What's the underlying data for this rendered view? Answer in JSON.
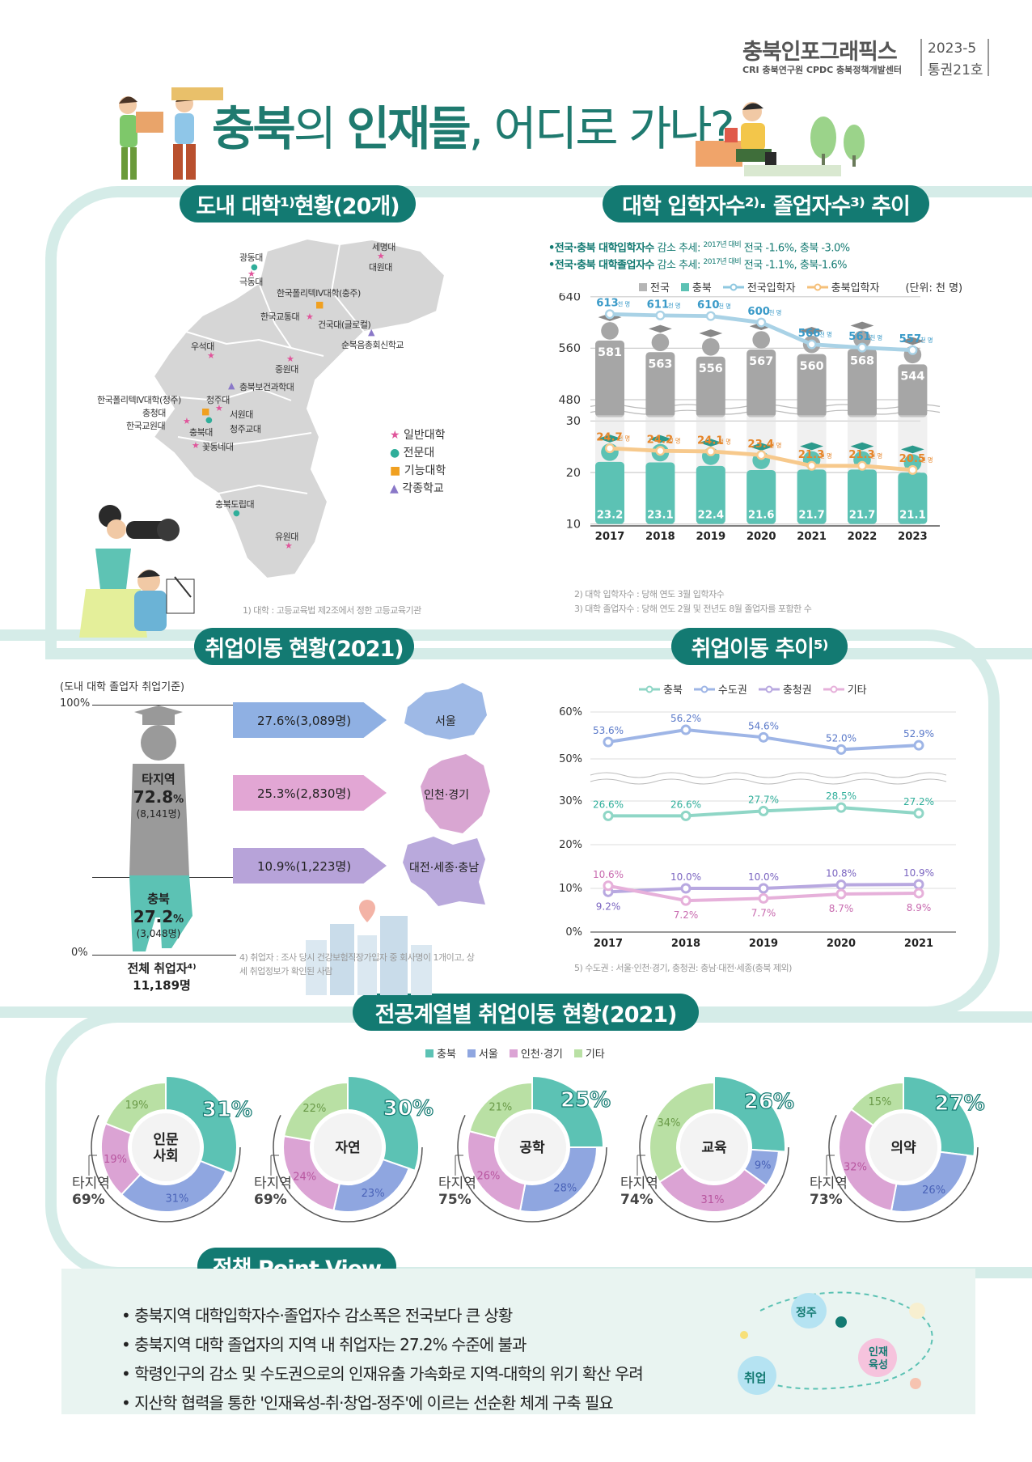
{
  "brand": {
    "title": "충북인포그래픽스",
    "org_line": "CRI 충북연구원 CPDC 충북정책개발센터",
    "issue_line1": "2023-5",
    "issue_line2": "통권21호"
  },
  "headline": {
    "part1": "충북",
    "part2": "의 ",
    "part3": "인재들",
    "part4": ", 어디로 가나?"
  },
  "sections": {
    "univ_status": "도내 대학¹⁾현황(20개)",
    "enroll_trend": "대학 입학자수²⁾· 졸업자수³⁾ 추이",
    "employ_status": "취업이동 현황(2021)",
    "employ_trend": "취업이동 추이⁵⁾",
    "major_status": "전공계열별 취업이동 현황(2021)",
    "policy": "정책 Point View"
  },
  "map": {
    "universities": [
      {
        "name": "광동대",
        "type": "전문대"
      },
      {
        "name": "세명대",
        "type": "일반대학"
      },
      {
        "name": "대원대",
        "type": "전문대"
      },
      {
        "name": "극동대",
        "type": "일반대학"
      },
      {
        "name": "한국폴리텍Ⅳ대학(충주)",
        "type": "기능대학"
      },
      {
        "name": "한국교통대",
        "type": "일반대학"
      },
      {
        "name": "건국대(글로컬)",
        "type": "일반대학"
      },
      {
        "name": "순복음총회신학교",
        "type": "각종학교"
      },
      {
        "name": "우석대",
        "type": "일반대학"
      },
      {
        "name": "중원대",
        "type": "일반대학"
      },
      {
        "name": "충북보건과학대",
        "type": "각종학교"
      },
      {
        "name": "한국폴리텍Ⅳ대학(청주)",
        "type": "기능대학"
      },
      {
        "name": "청주대",
        "type": "일반대학"
      },
      {
        "name": "충청대",
        "type": "전문대"
      },
      {
        "name": "서원대",
        "type": "일반대학"
      },
      {
        "name": "한국교원대",
        "type": "일반대학"
      },
      {
        "name": "청주교대",
        "type": "일반대학"
      },
      {
        "name": "충북대",
        "type": "일반대학"
      },
      {
        "name": "꽃동네대",
        "type": "일반대학"
      },
      {
        "name": "충북도립대",
        "type": "전문대"
      },
      {
        "name": "유원대",
        "type": "일반대학"
      }
    ],
    "legend": [
      {
        "label": "일반대학",
        "symbol": "★",
        "color": "#e0559b"
      },
      {
        "label": "전문대",
        "symbol": "●",
        "color": "#2fae9a"
      },
      {
        "label": "기능대학",
        "symbol": "■",
        "color": "#f0a020"
      },
      {
        "label": "각종학교",
        "symbol": "▲",
        "color": "#8a78c8"
      }
    ],
    "footnote": "1) 대학 : 고등교육법 제2조에서 정한 고등교육기관"
  },
  "enroll": {
    "note1_a": "•전국·충북 대학",
    "note1_b": "입학자수",
    "note1_c": "감소 추세:",
    "note1_d": "2017년 대비",
    "note1_e": "전국 -1.6%, 충북 -3.0%",
    "note2_a": "•전국·충북 대학",
    "note2_b": "졸업자수",
    "note2_c": "감소 추세:",
    "note2_d": "2017년 대비",
    "note2_e": "전국 -1.1%, 충북-1.6%",
    "legend": [
      "전국",
      "충북",
      "전국입학자",
      "충북입학자"
    ],
    "unit": "(단위: 천 명)",
    "unit_label": "천 명",
    "footnote1": "2) 대학 입학자수 : 당해 연도 3월 입학자수",
    "footnote2": "3) 대학 졸업자수 : 당해 연도 2월 및 전년도 8월 졸업자를 포함한 수"
  },
  "chart_data": [
    {
      "type": "line",
      "x": [
        "2017",
        "2018",
        "2019",
        "2020",
        "2021",
        "2022",
        "2023"
      ],
      "y_ticks_upper": [
        "640",
        "560",
        "480"
      ],
      "y_ticks_lower": [
        "30",
        "20",
        "10"
      ],
      "series": [
        {
          "name": "전국입학자",
          "values": [
            613,
            611,
            610,
            600,
            566,
            561,
            557
          ]
        },
        {
          "name": "전국",
          "values": [
            581,
            563,
            556,
            567,
            560,
            568,
            544
          ]
        },
        {
          "name": "충북입학자",
          "values": [
            24.7,
            24.2,
            24.1,
            23.4,
            21.3,
            21.3,
            20.5
          ]
        },
        {
          "name": "충북",
          "values": [
            23.2,
            23.1,
            22.4,
            21.6,
            21.7,
            21.7,
            21.1
          ]
        }
      ]
    },
    {
      "type": "line",
      "x": [
        "2017",
        "2018",
        "2019",
        "2020",
        "2021"
      ],
      "y_ticks": [
        "60%",
        "50%",
        "30%",
        "20%",
        "10%",
        "0%"
      ],
      "series": [
        {
          "name": "충북",
          "values": [
            26.6,
            26.6,
            27.7,
            28.5,
            27.2
          ]
        },
        {
          "name": "수도권",
          "values": [
            53.6,
            56.2,
            54.6,
            52.0,
            52.9
          ]
        },
        {
          "name": "충청권",
          "values": [
            9.2,
            10.0,
            10.0,
            10.8,
            10.9
          ]
        },
        {
          "name": "기타",
          "values": [
            10.6,
            7.2,
            7.7,
            8.7,
            8.9
          ]
        }
      ]
    },
    {
      "type": "pie",
      "categories": [
        "충북",
        "서울",
        "인천·경기",
        "기타"
      ],
      "charts": [
        {
          "name": "인문 사회",
          "values": [
            31,
            31,
            19,
            19
          ]
        },
        {
          "name": "자연",
          "values": [
            30,
            23,
            24,
            22
          ]
        },
        {
          "name": "공학",
          "values": [
            25,
            28,
            26,
            21
          ]
        },
        {
          "name": "교육",
          "values": [
            26,
            9,
            31,
            34
          ]
        },
        {
          "name": "의약",
          "values": [
            27,
            26,
            32,
            15
          ]
        }
      ]
    }
  ],
  "employ": {
    "basis": "(도내 대학 졸업자 취업기준)",
    "pct100": "100%",
    "pct0": "0%",
    "out_label": "타지역",
    "out_pct": "72.8",
    "out_count": "(8,141명)",
    "in_label": "충북",
    "in_pct": "27.2",
    "in_count": "(3,048명)",
    "total_label": "전체 취업자⁴⁾",
    "total_count": "11,189명",
    "flows": [
      {
        "value": "27.6%(3,089명)",
        "dest": "서울",
        "color": "#8fb0e3"
      },
      {
        "value": "25.3%(2,830명)",
        "dest": "인천·경기",
        "color": "#e2a6d4"
      },
      {
        "value": "10.9%(1,223명)",
        "dest": "대전·세종·충남",
        "color": "#b7a3d9"
      }
    ],
    "footnote": "4) 취업자 : 조사 당시 건강보험직장가입자 중 회사명이 1개이고, 상세 취업정보가 확인된 사람"
  },
  "trend": {
    "legend": [
      "충북",
      "수도권",
      "충청권",
      "기타"
    ],
    "footnote": "5) 수도권 : 서울·인천·경기, 충청권: 충남·대전·세종(충북 제외)"
  },
  "majors": {
    "legend": [
      "충북",
      "서울",
      "인천·경기",
      "기타"
    ],
    "colors": [
      "#5cc2b4",
      "#8fa6e0",
      "#dba3d4",
      "#b9e0a4"
    ],
    "out_label": "타지역",
    "items": [
      {
        "label1": "인문",
        "label2": "사회",
        "out": "69"
      },
      {
        "label1": "자연",
        "label2": "",
        "out": "69"
      },
      {
        "label1": "공학",
        "label2": "",
        "out": "75"
      },
      {
        "label1": "교육",
        "label2": "",
        "out": "74"
      },
      {
        "label1": "의약",
        "label2": "",
        "out": "73"
      }
    ]
  },
  "policy": {
    "points": [
      "충북지역 대학입학자수·졸업자수 감소폭은 전국보다 큰 상황",
      "충북지역 대학 졸업자의 지역 내 취업자는 27.2% 수준에 불과",
      "학령인구의 감소 및 수도권으로의 인재유출 가속화로 지역-대학의 위기 확산 우려",
      "지산학 협력을 통한 '인재육성-취·창업-정주'에 이르는 선순환 체계 구축 필요"
    ],
    "cycle": [
      "정주",
      "인재 육성",
      "취업"
    ]
  },
  "colors": {
    "teal": "#137a72",
    "light_teal": "#d5ece8",
    "headline": "#1f7a6f"
  }
}
